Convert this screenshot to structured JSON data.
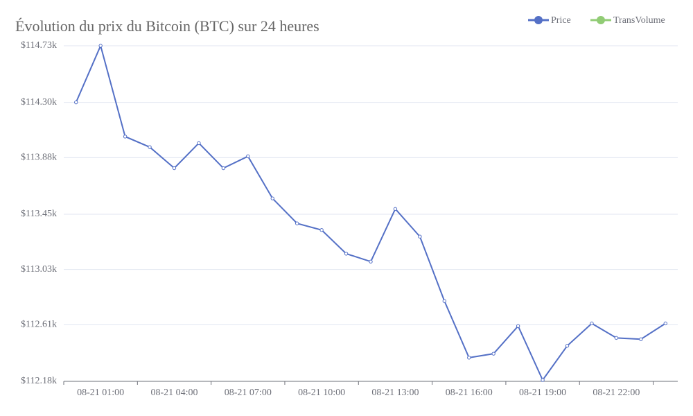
{
  "chart_data": {
    "type": "line",
    "title": "Évolution du prix du Bitcoin (BTC) sur 24 heures",
    "categories": [
      null,
      "08-21 01:00",
      null,
      null,
      "08-21 04:00",
      null,
      null,
      "08-21 07:00",
      null,
      null,
      "08-21 10:00",
      null,
      null,
      "08-21 13:00",
      null,
      null,
      "08-21 16:00",
      null,
      null,
      "08-21 19:00",
      null,
      null,
      "08-21 22:00",
      null,
      null
    ],
    "series": [
      {
        "name": "Price",
        "color": "#5470c6",
        "values": [
          114.3,
          114.73,
          114.04,
          113.96,
          113.8,
          113.99,
          113.8,
          113.89,
          113.57,
          113.38,
          113.33,
          113.15,
          113.09,
          113.49,
          113.28,
          112.79,
          112.36,
          112.39,
          112.6,
          112.19,
          112.45,
          112.62,
          112.51,
          112.5,
          112.62
        ]
      },
      {
        "name": "TransVolume",
        "color": "#91cc75",
        "values": [
          null,
          null,
          null,
          null,
          null,
          null,
          null,
          null,
          null,
          null,
          null,
          null,
          null,
          null,
          null,
          null,
          null,
          null,
          null,
          null,
          null,
          null,
          null,
          null,
          null
        ]
      }
    ],
    "ylim": [
      112.18,
      114.73
    ],
    "yticks": [
      {
        "value": 112.18,
        "label": "$112.18k"
      },
      {
        "value": 112.61,
        "label": "$112.61k"
      },
      {
        "value": 113.03,
        "label": "$113.03k"
      },
      {
        "value": 113.45,
        "label": "$113.45k"
      },
      {
        "value": 113.88,
        "label": "$113.88k"
      },
      {
        "value": 114.3,
        "label": "$114.30k"
      },
      {
        "value": 114.73,
        "label": "$114.73k"
      }
    ],
    "grid": true,
    "legend": "top-right"
  }
}
